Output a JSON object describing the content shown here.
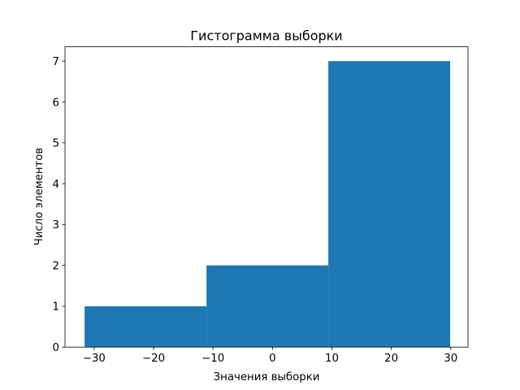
{
  "chart_data": {
    "type": "bar",
    "subtype": "histogram",
    "title": "Гистограмма выборки",
    "xlabel": "Значения выборки",
    "ylabel": "Число элементов",
    "bin_edges": [
      -31.6,
      -11.1,
      9.4,
      29.9
    ],
    "values": [
      1,
      2,
      7
    ],
    "xlim": [
      -34.9,
      32.9
    ],
    "ylim": [
      0,
      7.35
    ],
    "xticks": [
      -30,
      -20,
      -10,
      0,
      10,
      20,
      30
    ],
    "xtick_labels": [
      "−30",
      "−20",
      "−10",
      "0",
      "10",
      "20",
      "30"
    ],
    "yticks": [
      0,
      1,
      2,
      3,
      4,
      5,
      6,
      7
    ],
    "ytick_labels": [
      "0",
      "1",
      "2",
      "3",
      "4",
      "5",
      "6",
      "7"
    ],
    "grid": false,
    "bar_color": "#1f77b4"
  }
}
